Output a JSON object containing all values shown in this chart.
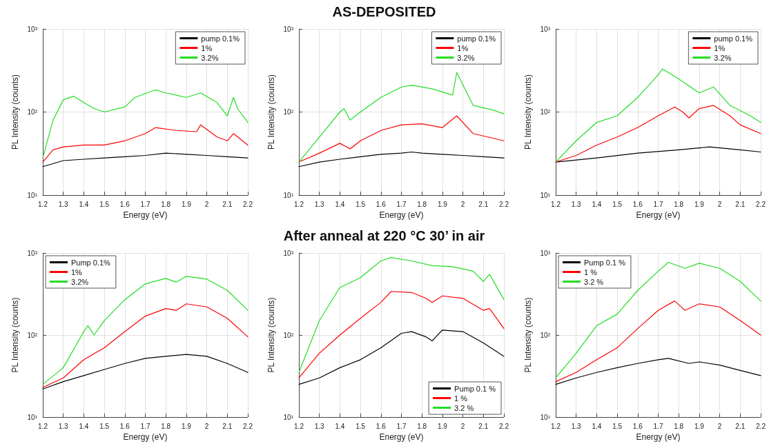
{
  "chart_data": [
    {
      "type": "line",
      "xlabel": "Energy (eV)",
      "ylabel": "PL Intensity (counts)",
      "log": "y",
      "grid": true,
      "legend": "top right",
      "marker": "none",
      "line_style": "solid",
      "xlim": [
        1.2,
        2.2
      ],
      "ylim": [
        10,
        1000
      ],
      "xticks": [
        1.2,
        1.3,
        1.4,
        1.5,
        1.6,
        1.7,
        1.8,
        1.9,
        2,
        2.1,
        2.2
      ],
      "yticks": [
        {
          "value": 10,
          "label": "10¹"
        },
        {
          "value": 100,
          "label": "10²"
        },
        {
          "value": 1000,
          "label": "10³"
        }
      ],
      "series": [
        {
          "name": "pump 0.1%",
          "color": "#000000",
          "x": [
            1.2,
            1.3,
            1.4,
            1.5,
            1.6,
            1.7,
            1.8,
            1.9,
            2,
            2.1,
            2.2
          ],
          "values": [
            22,
            26,
            27,
            28,
            29,
            30,
            32,
            31,
            30,
            29,
            28
          ]
        },
        {
          "name": "1%",
          "color": "#ff0000",
          "x": [
            1.2,
            1.25,
            1.3,
            1.4,
            1.5,
            1.6,
            1.7,
            1.75,
            1.85,
            1.95,
            1.97,
            2.05,
            2.1,
            2.13,
            2.2
          ],
          "values": [
            25,
            35,
            38,
            40,
            40,
            45,
            55,
            65,
            60,
            58,
            70,
            50,
            45,
            55,
            40
          ]
        },
        {
          "name": "3.2%",
          "color": "#22dd22",
          "x": [
            1.2,
            1.25,
            1.3,
            1.35,
            1.4,
            1.45,
            1.5,
            1.6,
            1.65,
            1.75,
            1.8,
            1.9,
            1.97,
            2.05,
            2.1,
            2.13,
            2.15,
            2.2
          ],
          "values": [
            28,
            80,
            140,
            155,
            130,
            110,
            100,
            115,
            150,
            185,
            170,
            150,
            170,
            130,
            90,
            150,
            110,
            75
          ]
        }
      ]
    },
    {
      "type": "line",
      "title": "AS-DEPOSITED",
      "xlabel": "Energy (eV)",
      "ylabel": "PL Intensity (counts)",
      "log": "y",
      "grid": true,
      "legend": "top right",
      "marker": "none",
      "line_style": "solid",
      "xlim": [
        1.2,
        2.2
      ],
      "ylim": [
        10,
        1000
      ],
      "xticks": [
        1.2,
        1.3,
        1.4,
        1.5,
        1.6,
        1.7,
        1.8,
        1.9,
        2,
        2.1,
        2.2
      ],
      "yticks": [
        {
          "value": 10,
          "label": "10¹"
        },
        {
          "value": 100,
          "label": "10²"
        },
        {
          "value": 1000,
          "label": "10³"
        }
      ],
      "series": [
        {
          "name": "pump 0.1%",
          "color": "#000000",
          "x": [
            1.2,
            1.3,
            1.4,
            1.5,
            1.6,
            1.7,
            1.75,
            1.8,
            1.9,
            2,
            2.1,
            2.2
          ],
          "values": [
            22,
            25,
            27,
            29,
            31,
            32,
            33,
            32,
            31,
            30,
            29,
            28
          ]
        },
        {
          "name": "1%",
          "color": "#ff0000",
          "x": [
            1.2,
            1.3,
            1.4,
            1.45,
            1.5,
            1.6,
            1.7,
            1.8,
            1.9,
            1.97,
            2.05,
            2.2
          ],
          "values": [
            25,
            32,
            42,
            36,
            45,
            60,
            70,
            72,
            65,
            90,
            55,
            45
          ]
        },
        {
          "name": "3.2%",
          "color": "#22dd22",
          "x": [
            1.2,
            1.3,
            1.4,
            1.42,
            1.45,
            1.5,
            1.6,
            1.7,
            1.75,
            1.85,
            1.95,
            1.97,
            2.05,
            2.15,
            2.2
          ],
          "values": [
            25,
            50,
            100,
            110,
            80,
            100,
            150,
            200,
            210,
            190,
            160,
            300,
            120,
            105,
            95
          ]
        }
      ]
    },
    {
      "type": "line",
      "xlabel": "Energy (eV)",
      "ylabel": "PL Intensity (counts)",
      "log": "y",
      "grid": true,
      "legend": "top right",
      "marker": "none",
      "line_style": "solid",
      "xlim": [
        1.2,
        2.2
      ],
      "ylim": [
        10,
        1000
      ],
      "xticks": [
        1.2,
        1.3,
        1.4,
        1.5,
        1.6,
        1.7,
        1.8,
        1.9,
        2,
        2.1,
        2.2
      ],
      "yticks": [
        {
          "value": 10,
          "label": "10¹"
        },
        {
          "value": 100,
          "label": "10²"
        },
        {
          "value": 1000,
          "label": "10³"
        }
      ],
      "series": [
        {
          "name": "pump 0.1%",
          "color": "#000000",
          "x": [
            1.2,
            1.4,
            1.6,
            1.8,
            1.95,
            2.1,
            2.2
          ],
          "values": [
            25,
            28,
            32,
            35,
            38,
            35,
            33
          ]
        },
        {
          "name": "1%",
          "color": "#ff0000",
          "x": [
            1.2,
            1.3,
            1.4,
            1.5,
            1.6,
            1.7,
            1.78,
            1.82,
            1.85,
            1.9,
            1.97,
            2.05,
            2.1,
            2.2
          ],
          "values": [
            25,
            30,
            40,
            50,
            65,
            90,
            115,
            100,
            85,
            110,
            120,
            90,
            70,
            55
          ]
        },
        {
          "name": "3.2%",
          "color": "#22dd22",
          "x": [
            1.2,
            1.3,
            1.4,
            1.5,
            1.6,
            1.7,
            1.72,
            1.8,
            1.9,
            1.97,
            2.05,
            2.15,
            2.2
          ],
          "values": [
            25,
            45,
            75,
            90,
            150,
            280,
            330,
            250,
            170,
            200,
            120,
            90,
            75
          ]
        }
      ]
    },
    {
      "type": "line",
      "xlabel": "Energy (eV)",
      "ylabel": "PL Intensity (counts)",
      "log": "y",
      "grid": true,
      "legend": "top left",
      "marker": "none",
      "line_style": "solid",
      "xlim": [
        1.2,
        2.2
      ],
      "ylim": [
        10,
        1000
      ],
      "xticks": [
        1.2,
        1.3,
        1.4,
        1.5,
        1.6,
        1.7,
        1.8,
        1.9,
        2,
        2.1,
        2.2
      ],
      "yticks": [
        {
          "value": 10,
          "label": "10¹"
        },
        {
          "value": 100,
          "label": "10²"
        },
        {
          "value": 1000,
          "label": "10³"
        }
      ],
      "series": [
        {
          "name": "Pump 0.1%",
          "color": "#000000",
          "x": [
            1.2,
            1.3,
            1.4,
            1.5,
            1.6,
            1.7,
            1.8,
            1.9,
            2,
            2.1,
            2.2
          ],
          "values": [
            22,
            27,
            32,
            38,
            45,
            52,
            55,
            58,
            55,
            45,
            35
          ]
        },
        {
          "name": "1%",
          "color": "#ff0000",
          "x": [
            1.2,
            1.3,
            1.4,
            1.5,
            1.6,
            1.7,
            1.8,
            1.85,
            1.9,
            2,
            2.1,
            2.2
          ],
          "values": [
            23,
            30,
            50,
            70,
            110,
            170,
            210,
            200,
            240,
            220,
            160,
            95
          ]
        },
        {
          "name": "3.2%",
          "color": "#22dd22",
          "x": [
            1.2,
            1.3,
            1.4,
            1.42,
            1.45,
            1.5,
            1.6,
            1.7,
            1.8,
            1.85,
            1.9,
            2,
            2.1,
            2.2
          ],
          "values": [
            25,
            40,
            110,
            130,
            100,
            150,
            270,
            420,
            490,
            440,
            520,
            480,
            350,
            200
          ]
        }
      ]
    },
    {
      "type": "line",
      "title": "After anneal at 220 °C 30’ in air",
      "xlabel": "Energy (eV)",
      "ylabel": "PL Intensity (counts)",
      "log": "y",
      "grid": true,
      "legend": "bottom right",
      "marker": "none",
      "line_style": "solid",
      "xlim": [
        1.2,
        2.2
      ],
      "ylim": [
        10,
        1000
      ],
      "xticks": [
        1.2,
        1.3,
        1.4,
        1.5,
        1.6,
        1.7,
        1.8,
        1.9,
        2,
        2.1,
        2.2
      ],
      "yticks": [
        {
          "value": 10,
          "label": "10¹"
        },
        {
          "value": 100,
          "label": "10²"
        },
        {
          "value": 1000,
          "label": "10³"
        }
      ],
      "series": [
        {
          "name": "Pump 0.1 %",
          "color": "#000000",
          "x": [
            1.2,
            1.3,
            1.4,
            1.5,
            1.6,
            1.7,
            1.75,
            1.82,
            1.85,
            1.9,
            2,
            2.1,
            2.2
          ],
          "values": [
            25,
            30,
            40,
            50,
            70,
            105,
            110,
            95,
            85,
            115,
            110,
            80,
            55
          ]
        },
        {
          "name": "1 %",
          "color": "#ff0000",
          "x": [
            1.2,
            1.3,
            1.4,
            1.5,
            1.6,
            1.65,
            1.75,
            1.82,
            1.85,
            1.9,
            2,
            2.1,
            2.13,
            2.2
          ],
          "values": [
            30,
            60,
            100,
            160,
            250,
            340,
            330,
            280,
            250,
            300,
            280,
            200,
            210,
            120
          ]
        },
        {
          "name": "3.2 %",
          "color": "#22dd22",
          "x": [
            1.2,
            1.3,
            1.4,
            1.5,
            1.6,
            1.65,
            1.75,
            1.85,
            1.95,
            2.05,
            2.1,
            2.13,
            2.2
          ],
          "values": [
            35,
            150,
            380,
            500,
            800,
            880,
            800,
            700,
            680,
            600,
            450,
            550,
            270
          ]
        }
      ]
    },
    {
      "type": "line",
      "xlabel": "Energy (eV)",
      "ylabel": "PL Intensity (counts)",
      "log": "y",
      "grid": true,
      "legend": "top left",
      "marker": "none",
      "line_style": "solid",
      "xlim": [
        1.2,
        2.2
      ],
      "ylim": [
        10,
        1000
      ],
      "xticks": [
        1.2,
        1.3,
        1.4,
        1.5,
        1.6,
        1.7,
        1.8,
        1.9,
        2,
        2.1,
        2.2
      ],
      "yticks": [
        {
          "value": 10,
          "label": "10¹"
        },
        {
          "value": 100,
          "label": "10²"
        },
        {
          "value": 1000,
          "label": "10³"
        }
      ],
      "series": [
        {
          "name": "Pump 0.1 %",
          "color": "#000000",
          "x": [
            1.2,
            1.3,
            1.4,
            1.5,
            1.6,
            1.7,
            1.75,
            1.85,
            1.9,
            2,
            2.1,
            2.2
          ],
          "values": [
            25,
            30,
            35,
            40,
            45,
            50,
            52,
            45,
            47,
            43,
            37,
            32
          ]
        },
        {
          "name": "1 %",
          "color": "#ff0000",
          "x": [
            1.2,
            1.3,
            1.4,
            1.5,
            1.6,
            1.7,
            1.78,
            1.83,
            1.9,
            2,
            2.1,
            2.2
          ],
          "values": [
            27,
            35,
            50,
            70,
            120,
            200,
            260,
            200,
            240,
            220,
            150,
            100
          ]
        },
        {
          "name": "3.2 %",
          "color": "#22dd22",
          "x": [
            1.2,
            1.3,
            1.4,
            1.5,
            1.6,
            1.7,
            1.75,
            1.83,
            1.9,
            2,
            2.1,
            2.2
          ],
          "values": [
            30,
            60,
            130,
            180,
            350,
            600,
            770,
            650,
            750,
            650,
            450,
            260
          ]
        }
      ]
    }
  ]
}
